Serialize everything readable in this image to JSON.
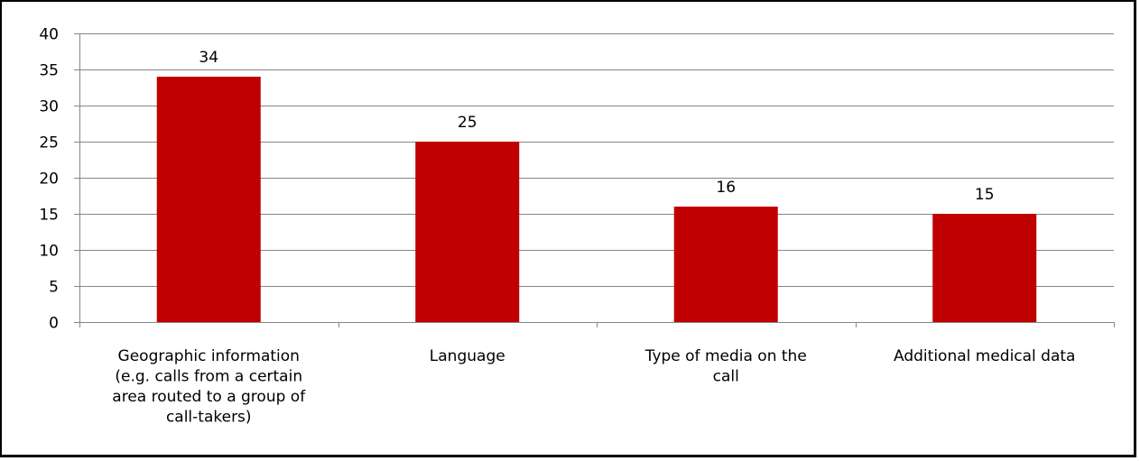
{
  "chart_data": {
    "type": "bar",
    "categories": [
      [
        "Geographic information",
        "(e.g. calls from a certain",
        "area routed to a group of",
        "call-takers)"
      ],
      [
        "Language"
      ],
      [
        "Type of media on the",
        "call"
      ],
      [
        "Additional medical data"
      ]
    ],
    "values": [
      34,
      25,
      16,
      15
    ],
    "data_labels": [
      "34",
      "25",
      "16",
      "15"
    ],
    "ylim": [
      0,
      40
    ],
    "yticks": [
      0,
      5,
      10,
      15,
      20,
      25,
      30,
      35,
      40
    ],
    "grid": true,
    "legend": "none",
    "bar_color": "#C00000",
    "grid_color": "#868686"
  }
}
